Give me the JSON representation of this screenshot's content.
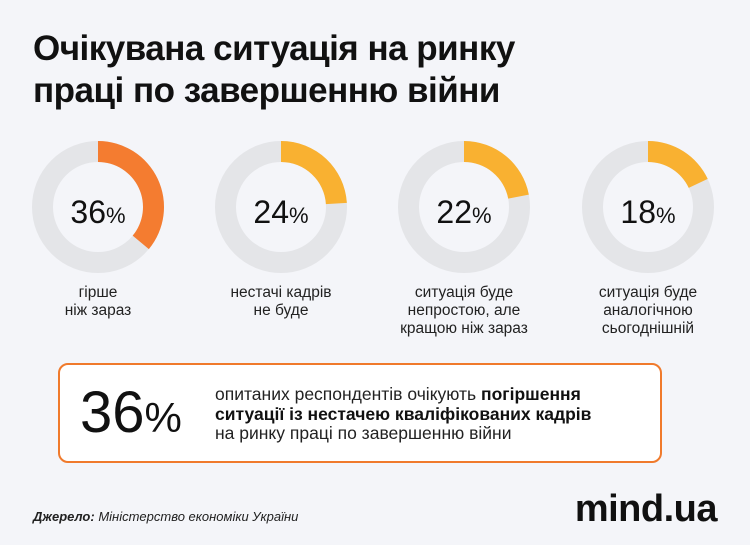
{
  "title": {
    "line1": "Очікувана ситуація на ринку",
    "line2": "праці по завершенню війни"
  },
  "chart_data": {
    "type": "pie",
    "variant": "donut",
    "slices": [
      {
        "value": 36,
        "display": "36",
        "label_lines": [
          "гірше",
          "ніж зараз"
        ],
        "color": "#f47c30"
      },
      {
        "value": 24,
        "display": "24",
        "label_lines": [
          "нестачі кадрів",
          "не буде"
        ],
        "color": "#f9b131"
      },
      {
        "value": 22,
        "display": "22",
        "label_lines": [
          "ситуація буде",
          "непростою, але",
          "кращою ніж зараз"
        ],
        "color": "#f9b131"
      },
      {
        "value": 18,
        "display": "18",
        "label_lines": [
          "ситуація буде",
          "аналогічною",
          "сьогоднішній"
        ],
        "color": "#f9b131"
      }
    ],
    "unit": "%",
    "track_color": "#e4e5e8"
  },
  "callout": {
    "value": "36",
    "unit": "%",
    "text_line1_plain": "опитаних респондентів очікують ",
    "text_line1_bold": "погіршення",
    "text_line2_bold": "ситуації із нестачею кваліфікованих кадрів",
    "text_line3": "на ринку праці по завершенню війни",
    "border_color": "#f07a2c"
  },
  "source": {
    "label": "Джерело:",
    "text": " Міністерство економіки України"
  },
  "logo": "mind.ua"
}
